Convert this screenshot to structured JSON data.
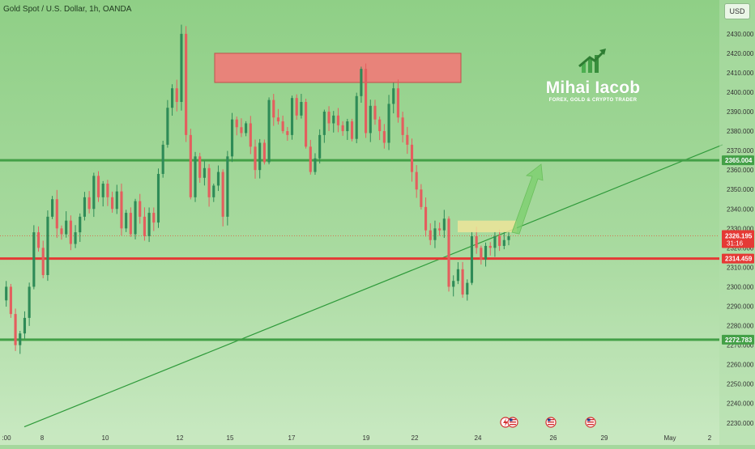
{
  "header": {
    "symbol_title": "Gold Spot / U.S. Dollar, 1h, OANDA",
    "currency": "USD"
  },
  "watermark": {
    "name": "Mihai Iacob",
    "tagline": "FOREX, GOLD & CRYPTO TRADER",
    "logo_icon": "growth-arrow-bars-icon"
  },
  "colors": {
    "background": "#a5d89d",
    "green_level": "#43a047",
    "red_level": "#e53935",
    "bull_candle": "#2e8b57",
    "bear_candle": "#e45e5e",
    "resistance_zone": "#e8837a",
    "breakout_zone": "#f2e59a",
    "trend_line": "#2e9a3a"
  },
  "chart_data": {
    "type": "candlestick",
    "y_range": [
      2227,
      2437
    ],
    "y_ticks": [
      2230,
      2240,
      2250,
      2260,
      2270,
      2280,
      2290,
      2300,
      2310,
      2320,
      2330,
      2340,
      2350,
      2360,
      2370,
      2380,
      2390,
      2400,
      2410,
      2420,
      2430
    ],
    "y_tick_labels": [
      "2230.000",
      "2240.000",
      "2250.000",
      "2260.000",
      "2270.000",
      "2280.000",
      "2290.000",
      "2300.000",
      "2310.000",
      "2320.000",
      "2330.000",
      "2340.000",
      "2350.000",
      "2360.000",
      "2370.000",
      "2380.000",
      "2390.000",
      "2400.000",
      "2410.000",
      "2420.000",
      "2430.000"
    ],
    "x_labels": [
      ":00",
      "8",
      "10",
      "12",
      "15",
      "17",
      "19",
      "22",
      "24",
      "26",
      "29",
      "May",
      "2"
    ],
    "levels": [
      {
        "label": "2365.004",
        "value": 2365.004,
        "color": "green"
      },
      {
        "label": "2314.459",
        "value": 2314.459,
        "color": "red"
      },
      {
        "label": "2272.783",
        "value": 2272.783,
        "color": "green"
      }
    ],
    "last_price": {
      "label": "2326.195",
      "countdown": "31:16",
      "value": 2326.195
    },
    "zones": [
      {
        "kind": "resistance",
        "y_top": 2420,
        "y_bottom": 2405
      },
      {
        "kind": "breakout",
        "y_top": 2334,
        "y_bottom": 2328
      }
    ],
    "trendline": {
      "from": 2228,
      "to": 2373
    },
    "projection_arrow": {
      "from": 2328,
      "to": 2363
    },
    "path": [
      2293,
      2300,
      2286,
      2270,
      2276,
      2284,
      2300,
      2328,
      2320,
      2306,
      2336,
      2345,
      2330,
      2327,
      2334,
      2322,
      2328,
      2336,
      2346,
      2340,
      2357,
      2346,
      2353,
      2346,
      2340,
      2349,
      2330,
      2338,
      2327,
      2344,
      2336,
      2326,
      2338,
      2333,
      2358,
      2373,
      2392,
      2402,
      2395,
      2430,
      2378,
      2346,
      2367,
      2356,
      2361,
      2346,
      2352,
      2359,
      2336,
      2367,
      2386,
      2382,
      2379,
      2384,
      2372,
      2360,
      2374,
      2364,
      2396,
      2387,
      2385,
      2380,
      2378,
      2397,
      2388,
      2395,
      2372,
      2359,
      2366,
      2378,
      2390,
      2384,
      2388,
      2383,
      2380,
      2385,
      2376,
      2398,
      2412,
      2379,
      2393,
      2386,
      2380,
      2374,
      2394,
      2402,
      2387,
      2378,
      2373,
      2359,
      2350,
      2341,
      2329,
      2324,
      2330,
      2329,
      2335,
      2300,
      2303,
      2309,
      2296,
      2302,
      2326,
      2320,
      2314,
      2321,
      2320,
      2326,
      2321,
      2324,
      2326
    ]
  },
  "events": {
    "icons": [
      "flash-event-icon",
      "us-flag-event-icon",
      "us-flag-event-icon",
      "us-flag-event-icon"
    ]
  }
}
